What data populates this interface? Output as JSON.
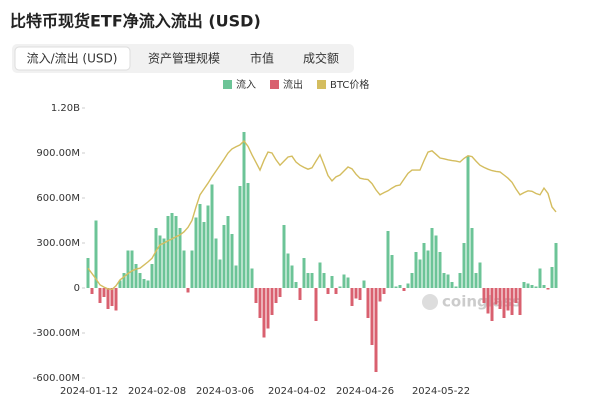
{
  "chart_data": {
    "type": "bar",
    "title": "比特币现货ETF净流入流出 (USD)",
    "tabs": [
      "流入/流出 (USD)",
      "资产管理规模",
      "市值",
      "成交额"
    ],
    "watermark": "coinglass",
    "categories": [
      "2024-01-12",
      null,
      null,
      null,
      null,
      null,
      null,
      null,
      null,
      null,
      null,
      null,
      null,
      null,
      null,
      null,
      null,
      "2024-02-08",
      null,
      null,
      null,
      null,
      null,
      null,
      null,
      null,
      null,
      null,
      null,
      null,
      null,
      null,
      null,
      null,
      "2024-03-06",
      null,
      null,
      null,
      null,
      null,
      null,
      null,
      null,
      null,
      null,
      null,
      null,
      null,
      null,
      null,
      null,
      null,
      "2024-04-02",
      null,
      null,
      null,
      null,
      null,
      null,
      null,
      null,
      null,
      null,
      null,
      null,
      null,
      null,
      null,
      null,
      "2024-04-26",
      null,
      null,
      null,
      null,
      null,
      null,
      null,
      null,
      null,
      null,
      null,
      null,
      null,
      null,
      null,
      null,
      null,
      null,
      "2024-05-22",
      null,
      null,
      null,
      null,
      null,
      null,
      null,
      null,
      null,
      null,
      null,
      null,
      null,
      null,
      null,
      null,
      null,
      null,
      null,
      null,
      null,
      null,
      null,
      null,
      null,
      null,
      null,
      null,
      null
    ],
    "ylim": [
      -600000000.0,
      1200000000.0
    ],
    "yticks": [
      {
        "value": 1200000000.0,
        "label": "1.20B"
      },
      {
        "value": 900000000.0,
        "label": "900.00M"
      },
      {
        "value": 600000000.0,
        "label": "600.00M"
      },
      {
        "value": 300000000.0,
        "label": "300.00M"
      },
      0,
      {
        "value": -300000000.0,
        "label": "-300.00M"
      },
      {
        "value": -600000000.0,
        "label": "-600.00M"
      }
    ],
    "y2lim": [
      20000,
      80000
    ],
    "grid": false,
    "series": [
      {
        "name": "流入",
        "color": "#6cc497",
        "values": [
          200000000.0,
          null,
          450000000.0,
          null,
          null,
          null,
          null,
          null,
          50000000.0,
          100000000.0,
          250000000.0,
          250000000.0,
          160000000.0,
          100000000.0,
          60000000.0,
          50000000.0,
          160000000.0,
          400000000.0,
          350000000.0,
          330000000.0,
          480000000.0,
          500000000.0,
          480000000.0,
          400000000.0,
          250000000.0,
          null,
          250000000.0,
          470000000.0,
          560000000.0,
          440000000.0,
          550000000.0,
          690000000.0,
          330000000.0,
          190000000.0,
          420000000.0,
          480000000.0,
          360000000.0,
          150000000.0,
          680000000.0,
          1040000000.0,
          700000000.0,
          130000000.0,
          null,
          null,
          null,
          null,
          null,
          null,
          null,
          420000000.0,
          230000000.0,
          150000000.0,
          40000000.0,
          null,
          200000000.0,
          100000000.0,
          100000000.0,
          null,
          170000000.0,
          100000000.0,
          null,
          80000000.0,
          null,
          10000000.0,
          90000000.0,
          70000000.0,
          null,
          null,
          null,
          50000000.0,
          null,
          null,
          null,
          null,
          null,
          380000000.0,
          220000000.0,
          10000000.0,
          20000000.0,
          null,
          30000000.0,
          100000000.0,
          240000000.0,
          190000000.0,
          300000000.0,
          250000000.0,
          400000000.0,
          350000000.0,
          240000000.0,
          100000000.0,
          90000000.0,
          40000000.0,
          10000000.0,
          100000000.0,
          300000000.0,
          880000000.0,
          400000000.0,
          100000000.0,
          170000000.0,
          null,
          null,
          null,
          null,
          null,
          null,
          null,
          null,
          null,
          null,
          40000000.0,
          30000000.0,
          20000000.0,
          10000000.0,
          130000000.0,
          20000000.0,
          null,
          140000000.0,
          300000000.0
        ]
      },
      {
        "name": "流出",
        "color": "#d9606f",
        "values": [
          null,
          -40000000.0,
          null,
          -100000000.0,
          -60000000.0,
          -140000000.0,
          -120000000.0,
          -150000000.0,
          null,
          null,
          null,
          null,
          null,
          null,
          null,
          null,
          null,
          null,
          null,
          null,
          null,
          null,
          null,
          null,
          null,
          -30000000.0,
          null,
          null,
          null,
          null,
          null,
          null,
          null,
          null,
          null,
          null,
          null,
          null,
          null,
          null,
          null,
          null,
          -100000000.0,
          -200000000.0,
          -330000000.0,
          -270000000.0,
          -180000000.0,
          -100000000.0,
          -60000000.0,
          null,
          null,
          null,
          null,
          -80000000.0,
          null,
          null,
          null,
          -220000000.0,
          null,
          null,
          -40000000.0,
          null,
          -40000000.0,
          null,
          null,
          null,
          -120000000.0,
          -70000000.0,
          -80000000.0,
          null,
          -200000000.0,
          -380000000.0,
          -560000000.0,
          -90000000.0,
          -40000000.0,
          null,
          null,
          null,
          null,
          -20000000.0,
          null,
          null,
          null,
          null,
          null,
          null,
          null,
          null,
          null,
          null,
          null,
          null,
          null,
          null,
          null,
          null,
          null,
          null,
          null,
          -100000000.0,
          -170000000.0,
          -220000000.0,
          -110000000.0,
          -140000000.0,
          -200000000.0,
          -150000000.0,
          -180000000.0,
          -100000000.0,
          -180000000.0,
          null,
          null,
          null,
          null,
          null,
          null,
          -10000000.0,
          null,
          null
        ]
      },
      {
        "name": "BTC价格",
        "color": "#d4bd5f",
        "type": "line",
        "axis": "y2",
        "values": [
          44400,
          43200,
          42000,
          40700,
          40200,
          39800,
          39700,
          40500,
          41800,
          42500,
          43200,
          43800,
          44200,
          44400,
          45100,
          45800,
          46600,
          48200,
          49600,
          50000,
          50500,
          50900,
          51400,
          51800,
          52500,
          53500,
          55000,
          58000,
          60700,
          62000,
          63300,
          64700,
          66000,
          67300,
          68600,
          70000,
          70900,
          71400,
          71800,
          72700,
          71500,
          69600,
          67900,
          66200,
          68400,
          70200,
          70000,
          68500,
          67300,
          68200,
          69100,
          69300,
          68000,
          67300,
          66800,
          66400,
          66700,
          68200,
          69600,
          67400,
          65000,
          63800,
          64700,
          65100,
          66000,
          66900,
          66500,
          65300,
          64400,
          64200,
          64100,
          63200,
          61800,
          60700,
          61200,
          61600,
          62200,
          62700,
          62900,
          64200,
          65500,
          66200,
          66200,
          66200,
          68300,
          70200,
          70500,
          69700,
          68900,
          68700,
          68500,
          68300,
          68200,
          68000,
          68800,
          69400,
          69200,
          68200,
          67300,
          66800,
          66400,
          66100,
          65900,
          65800,
          65100,
          64400,
          63500,
          62000,
          60700,
          61200,
          61600,
          61500,
          61000,
          60700,
          62200,
          61000,
          58000,
          56900
        ]
      }
    ]
  }
}
